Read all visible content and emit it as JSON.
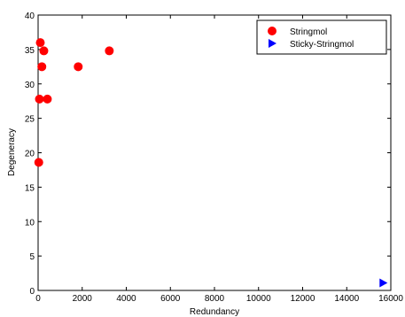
{
  "chart_data": {
    "type": "scatter",
    "xlabel": "Redundancy",
    "ylabel": "Degeneracy",
    "xlim": [
      0,
      16000
    ],
    "ylim": [
      0,
      40
    ],
    "xticks": [
      0,
      2000,
      4000,
      6000,
      8000,
      10000,
      12000,
      14000,
      16000
    ],
    "yticks": [
      0,
      5,
      10,
      15,
      20,
      25,
      30,
      35,
      40
    ],
    "grid": false,
    "legend_position": "top-right",
    "series": [
      {
        "name": "Stringmol",
        "color": "#ff0000",
        "marker": "circle",
        "points": [
          {
            "x": 30,
            "y": 18.6
          },
          {
            "x": 60,
            "y": 27.8
          },
          {
            "x": 100,
            "y": 36
          },
          {
            "x": 170,
            "y": 32.5
          },
          {
            "x": 260,
            "y": 34.8
          },
          {
            "x": 420,
            "y": 27.8
          },
          {
            "x": 1820,
            "y": 32.5
          },
          {
            "x": 3230,
            "y": 34.8
          }
        ]
      },
      {
        "name": "Sticky-Stringmol",
        "color": "#0000ff",
        "marker": "triangle-right",
        "points": [
          {
            "x": 15650,
            "y": 1.1
          }
        ]
      }
    ]
  }
}
